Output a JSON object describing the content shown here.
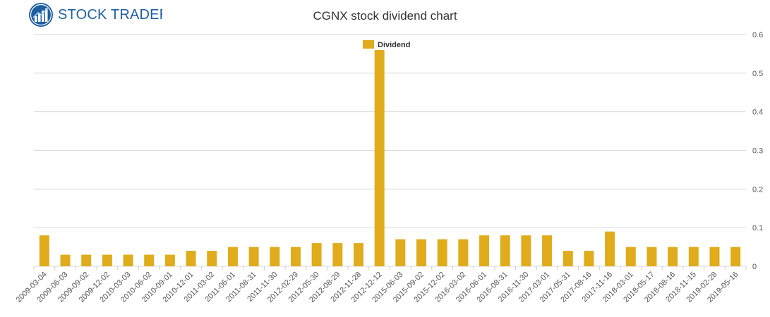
{
  "logo": {
    "text": "STOCK TRADERS"
  },
  "colors": {
    "bar": "#e0ac1c",
    "grid": "#d9d9d9",
    "brand": "#1f5f9e"
  },
  "chart_data": {
    "type": "bar",
    "title": "CGNX stock dividend chart",
    "legend": {
      "entries": [
        "Dividend"
      ],
      "placement": "top-center"
    },
    "ylim": [
      0,
      0.6
    ],
    "y_ticks": [
      0,
      0.1,
      0.2,
      0.3,
      0.4,
      0.5,
      0.6
    ],
    "y_tick_labels": [
      "0",
      "0.1",
      "0.2",
      "0.3",
      "0.4",
      "0.5",
      "0.6"
    ],
    "y_axis_side": "right",
    "grid": true,
    "categories": [
      "2009-03-04",
      "2009-06-03",
      "2009-09-02",
      "2009-12-02",
      "2010-03-03",
      "2010-06-02",
      "2010-09-01",
      "2010-12-01",
      "2011-03-02",
      "2011-06-01",
      "2011-08-31",
      "2011-11-30",
      "2012-02-29",
      "2012-05-30",
      "2012-08-29",
      "2012-11-28",
      "2012-12-12",
      "2015-06-03",
      "2015-09-02",
      "2015-12-02",
      "2016-03-02",
      "2016-06-01",
      "2016-08-31",
      "2016-11-30",
      "2017-03-01",
      "2017-05-31",
      "2017-08-16",
      "2017-11-16",
      "2018-03-01",
      "2018-05-17",
      "2018-08-16",
      "2018-11-15",
      "2019-02-28",
      "2019-05-16"
    ],
    "series": [
      {
        "name": "Dividend",
        "values": [
          0.08,
          0.03,
          0.03,
          0.03,
          0.03,
          0.03,
          0.03,
          0.04,
          0.04,
          0.05,
          0.05,
          0.05,
          0.05,
          0.06,
          0.06,
          0.06,
          0.56,
          0.07,
          0.07,
          0.07,
          0.07,
          0.08,
          0.08,
          0.08,
          0.08,
          0.04,
          0.04,
          0.09,
          0.05,
          0.05,
          0.05,
          0.05,
          0.05,
          0.05
        ]
      }
    ]
  }
}
